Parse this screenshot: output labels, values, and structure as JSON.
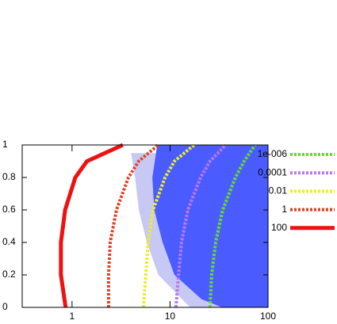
{
  "chart_data": {
    "type": "line",
    "xscale": "log",
    "xlim": [
      0.31,
      100
    ],
    "ylim": [
      0,
      1
    ],
    "xticks": [
      1,
      10,
      100
    ],
    "yticks": [
      0,
      0.2,
      0.4,
      0.6,
      0.8,
      1
    ],
    "areas": [
      {
        "color": "#c8c8f4",
        "x": [
          4,
          4.4,
          4.8,
          5.8,
          7.6,
          13.3,
          16,
          100,
          100
        ],
        "values": [
          0.95,
          0.8,
          0.6,
          0.4,
          0.2,
          0.05,
          0,
          0,
          0.95
        ]
      },
      {
        "color": "#4a5cff",
        "x": [
          7.4,
          6.6,
          6.9,
          8.4,
          11.1,
          21,
          34,
          100,
          100
        ],
        "values": [
          1,
          0.8,
          0.6,
          0.4,
          0.2,
          0.05,
          0,
          0,
          1
        ]
      }
    ],
    "series": [
      {
        "name": "1e-006",
        "color": "#66dd22",
        "dashed": true,
        "x": [
          25.6,
          26.6,
          29.2,
          34.5,
          46.5,
          57,
          74
        ],
        "values": [
          0,
          0.2,
          0.4,
          0.6,
          0.8,
          0.9,
          1
        ]
      },
      {
        "name": "0.0001",
        "color": "#bb77ee",
        "dashed": true,
        "x": [
          11.5,
          12.2,
          13.1,
          15.2,
          20.5,
          25.6,
          37
        ],
        "values": [
          0,
          0.2,
          0.4,
          0.6,
          0.8,
          0.9,
          1
        ]
      },
      {
        "name": "0.01",
        "color": "#eeee22",
        "dashed": true,
        "x": [
          5.35,
          5.66,
          5.98,
          6.7,
          8.9,
          11.1,
          17.6
        ],
        "values": [
          0,
          0.2,
          0.4,
          0.6,
          0.8,
          0.9,
          1
        ]
      },
      {
        "name": "1",
        "color": "#dd4422",
        "dashed": true,
        "x": [
          2.36,
          2.36,
          2.45,
          2.84,
          3.76,
          4.79,
          7.6
        ],
        "values": [
          0,
          0.2,
          0.4,
          0.6,
          0.8,
          0.9,
          1
        ]
      },
      {
        "name": "100",
        "color": "#ee1111",
        "dashed": false,
        "x": [
          0.86,
          0.77,
          0.77,
          0.85,
          1.08,
          1.42,
          3.3
        ],
        "values": [
          0,
          0.2,
          0.4,
          0.6,
          0.8,
          0.9,
          1
        ]
      }
    ]
  }
}
